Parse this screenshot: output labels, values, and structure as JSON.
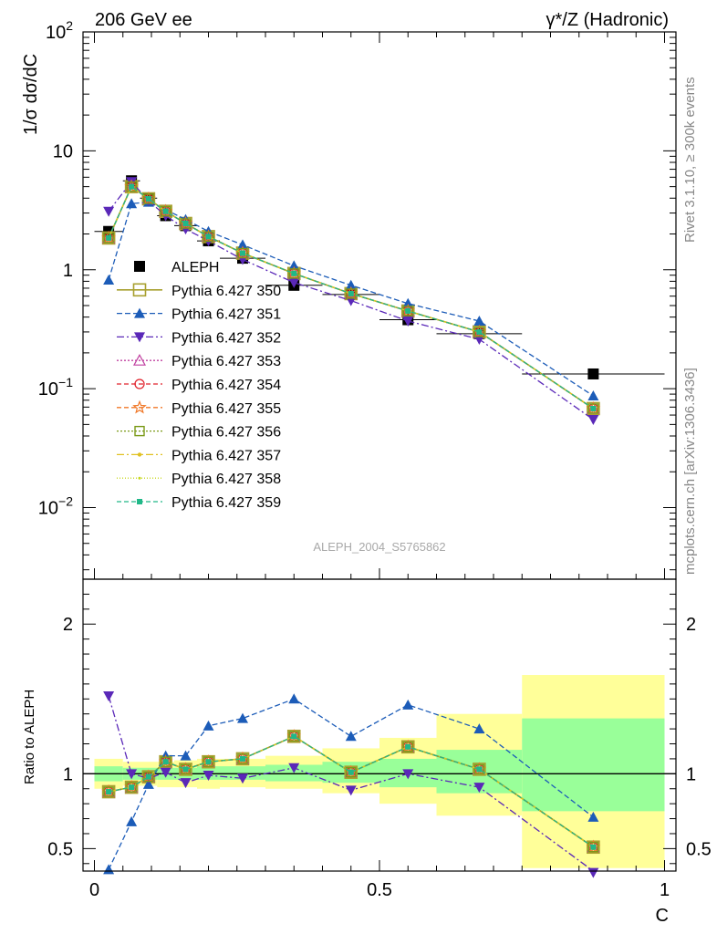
{
  "header": {
    "left": "206 GeV ee",
    "right": "γ*/Z (Hadronic)"
  },
  "side_labels": {
    "rivet": "Rivet 3.1.10, ≥ 300k events",
    "mcplots": "mcplots.cern.ch [arXiv:1306.3436]"
  },
  "analysis_label": "ALEPH_2004_S5765862",
  "chart_data": [
    {
      "type": "line",
      "panel": "main",
      "ylabel": "1/σ  dσ/dC",
      "yscale": "log",
      "ylim": [
        0.0025,
        100
      ],
      "xlim": [
        -0.02,
        1.02
      ],
      "ytick_labels": [
        {
          "value": 100,
          "base": "10",
          "exp": "2"
        },
        {
          "value": 10,
          "base": "10",
          "exp": ""
        },
        {
          "value": 1,
          "base": "1",
          "exp": ""
        },
        {
          "value": 0.1,
          "base": "10",
          "exp": "−1"
        },
        {
          "value": 0.01,
          "base": "10",
          "exp": "−2"
        }
      ],
      "x": [
        0.025,
        0.065,
        0.095,
        0.125,
        0.16,
        0.2,
        0.26,
        0.35,
        0.45,
        0.55,
        0.675,
        0.875
      ],
      "xerr": [
        0.025,
        0.015,
        0.015,
        0.015,
        0.02,
        0.02,
        0.04,
        0.05,
        0.05,
        0.05,
        0.075,
        0.125
      ],
      "legend_position": "center-left",
      "series": [
        {
          "name": "ALEPH",
          "color": "#000000",
          "marker": "square-filled",
          "dash": "none",
          "values": [
            2.1,
            5.6,
            4.0,
            2.85,
            2.35,
            1.75,
            1.25,
            0.74,
            0.62,
            0.38,
            0.29,
            0.133
          ]
        },
        {
          "name": "Pythia 6.427 350",
          "color": "#a8a030",
          "marker": "square-open-large",
          "dash": "solid",
          "values": [
            1.85,
            5.0,
            3.95,
            3.1,
            2.45,
            1.9,
            1.38,
            0.93,
            0.63,
            0.45,
            0.3,
            0.068
          ]
        },
        {
          "name": "Pythia 6.427 351",
          "color": "#1c5cb8",
          "marker": "triangle-up",
          "dash": "6,3",
          "values": [
            0.82,
            3.6,
            3.7,
            3.2,
            2.65,
            2.1,
            1.62,
            1.08,
            0.74,
            0.52,
            0.37,
            0.087
          ]
        },
        {
          "name": "Pythia 6.427 352",
          "color": "#5a28b8",
          "marker": "triangle-down",
          "dash": "8,3,2,3",
          "values": [
            3.1,
            5.5,
            3.8,
            2.85,
            2.2,
            1.75,
            1.22,
            0.78,
            0.55,
            0.37,
            0.26,
            0.055
          ]
        },
        {
          "name": "Pythia 6.427 353",
          "color": "#c040a0",
          "marker": "triangle-open",
          "dash": "2,2",
          "values": [
            1.85,
            5.0,
            3.95,
            3.1,
            2.45,
            1.9,
            1.38,
            0.93,
            0.63,
            0.45,
            0.3,
            0.068
          ]
        },
        {
          "name": "Pythia 6.427 354",
          "color": "#e0202a",
          "marker": "circle-open",
          "dash": "5,3",
          "values": [
            1.85,
            5.0,
            3.95,
            3.1,
            2.45,
            1.9,
            1.38,
            0.93,
            0.63,
            0.45,
            0.3,
            0.068
          ]
        },
        {
          "name": "Pythia 6.427 355",
          "color": "#f07828",
          "marker": "star-open",
          "dash": "5,3",
          "values": [
            1.85,
            5.0,
            3.95,
            3.1,
            2.45,
            1.9,
            1.38,
            0.93,
            0.63,
            0.45,
            0.3,
            0.068
          ]
        },
        {
          "name": "Pythia 6.427 356",
          "color": "#7a9a18",
          "marker": "square-open",
          "dash": "2,2",
          "values": [
            1.85,
            5.0,
            3.95,
            3.1,
            2.45,
            1.9,
            1.38,
            0.93,
            0.63,
            0.45,
            0.3,
            0.068
          ]
        },
        {
          "name": "Pythia 6.427 357",
          "color": "#e0c020",
          "marker": "dot-small",
          "dash": "8,3,2,3",
          "values": [
            1.85,
            5.0,
            3.95,
            3.1,
            2.45,
            1.9,
            1.38,
            0.93,
            0.63,
            0.45,
            0.3,
            0.068
          ]
        },
        {
          "name": "Pythia 6.427 358",
          "color": "#c8d820",
          "marker": "dot-tiny",
          "dash": "1,2",
          "values": [
            1.85,
            5.0,
            3.95,
            3.1,
            2.45,
            1.9,
            1.38,
            0.93,
            0.63,
            0.45,
            0.3,
            0.068
          ]
        },
        {
          "name": "Pythia 6.427 359",
          "color": "#20b888",
          "marker": "square-filled-small",
          "dash": "5,3",
          "values": [
            1.85,
            5.0,
            3.95,
            3.1,
            2.45,
            1.9,
            1.38,
            0.93,
            0.63,
            0.45,
            0.3,
            0.068
          ]
        }
      ]
    },
    {
      "type": "line",
      "panel": "ratio",
      "xlabel": "C",
      "ylabel": "Ratio to ALEPH",
      "ylim": [
        0.35,
        2.3
      ],
      "xlim": [
        -0.02,
        1.02
      ],
      "x_ticks": [
        0,
        0.5,
        1
      ],
      "x_tick_labels": [
        "0",
        "0.5",
        "1"
      ],
      "y_ticks": [
        0.5,
        1,
        2
      ],
      "y_tick_labels": [
        "0.5",
        "1",
        "2"
      ],
      "reference_line": 1,
      "band_edges": [
        0.0,
        0.05,
        0.08,
        0.11,
        0.14,
        0.18,
        0.22,
        0.3,
        0.4,
        0.5,
        0.6,
        0.75,
        1.0
      ],
      "band_green_lower": [
        0.95,
        0.96,
        0.96,
        0.96,
        0.96,
        0.96,
        0.96,
        0.95,
        0.94,
        0.91,
        0.87,
        0.75
      ],
      "band_green_upper": [
        1.05,
        1.04,
        1.04,
        1.04,
        1.04,
        1.05,
        1.05,
        1.06,
        1.08,
        1.1,
        1.16,
        1.37
      ],
      "band_yellow_lower": [
        0.9,
        0.92,
        0.92,
        0.91,
        0.91,
        0.9,
        0.91,
        0.9,
        0.87,
        0.8,
        0.72,
        0.37
      ],
      "band_yellow_upper": [
        1.1,
        1.08,
        1.08,
        1.08,
        1.09,
        1.1,
        1.1,
        1.12,
        1.17,
        1.24,
        1.4,
        1.66
      ],
      "series": [
        {
          "name": "Pythia 6.427 350",
          "color": "#a8a030",
          "marker": "square-open-large",
          "dash": "solid",
          "values": [
            0.88,
            0.91,
            0.98,
            1.08,
            1.03,
            1.08,
            1.1,
            1.25,
            1.01,
            1.18,
            1.03,
            0.51
          ]
        },
        {
          "name": "Pythia 6.427 351",
          "color": "#1c5cb8",
          "marker": "triangle-up",
          "dash": "6,3",
          "values": [
            0.36,
            0.68,
            0.93,
            1.12,
            1.12,
            1.32,
            1.37,
            1.5,
            1.25,
            1.46,
            1.3,
            0.71
          ]
        },
        {
          "name": "Pythia 6.427 352",
          "color": "#5a28b8",
          "marker": "triangle-down",
          "dash": "8,3,2,3",
          "values": [
            1.52,
            1.0,
            0.97,
            1.01,
            0.94,
            0.99,
            0.97,
            1.04,
            0.89,
            1.0,
            0.91,
            0.34
          ]
        },
        {
          "name": "Pythia 6.427 353",
          "color": "#c040a0",
          "marker": "triangle-open",
          "dash": "2,2",
          "values": [
            0.88,
            0.91,
            0.98,
            1.08,
            1.03,
            1.08,
            1.1,
            1.25,
            1.01,
            1.18,
            1.03,
            0.51
          ]
        },
        {
          "name": "Pythia 6.427 354",
          "color": "#e0202a",
          "marker": "circle-open",
          "dash": "5,3",
          "values": [
            0.88,
            0.91,
            0.98,
            1.08,
            1.03,
            1.08,
            1.1,
            1.25,
            1.01,
            1.18,
            1.03,
            0.51
          ]
        },
        {
          "name": "Pythia 6.427 355",
          "color": "#f07828",
          "marker": "star-open",
          "dash": "5,3",
          "values": [
            0.88,
            0.91,
            0.98,
            1.08,
            1.03,
            1.08,
            1.1,
            1.25,
            1.01,
            1.18,
            1.03,
            0.51
          ]
        },
        {
          "name": "Pythia 6.427 356",
          "color": "#7a9a18",
          "marker": "square-open",
          "dash": "2,2",
          "values": [
            0.88,
            0.91,
            0.98,
            1.08,
            1.03,
            1.08,
            1.1,
            1.25,
            1.01,
            1.18,
            1.03,
            0.51
          ]
        },
        {
          "name": "Pythia 6.427 357",
          "color": "#e0c020",
          "marker": "dot-small",
          "dash": "8,3,2,3",
          "values": [
            0.88,
            0.91,
            0.98,
            1.08,
            1.03,
            1.08,
            1.1,
            1.25,
            1.01,
            1.18,
            1.03,
            0.51
          ]
        },
        {
          "name": "Pythia 6.427 358",
          "color": "#c8d820",
          "marker": "dot-tiny",
          "dash": "1,2",
          "values": [
            0.88,
            0.91,
            0.98,
            1.08,
            1.03,
            1.08,
            1.1,
            1.25,
            1.01,
            1.18,
            1.03,
            0.51
          ]
        },
        {
          "name": "Pythia 6.427 359",
          "color": "#20b888",
          "marker": "square-filled-small",
          "dash": "5,3",
          "values": [
            0.88,
            0.91,
            0.98,
            1.08,
            1.03,
            1.08,
            1.1,
            1.25,
            1.01,
            1.18,
            1.03,
            0.51
          ]
        }
      ]
    }
  ]
}
